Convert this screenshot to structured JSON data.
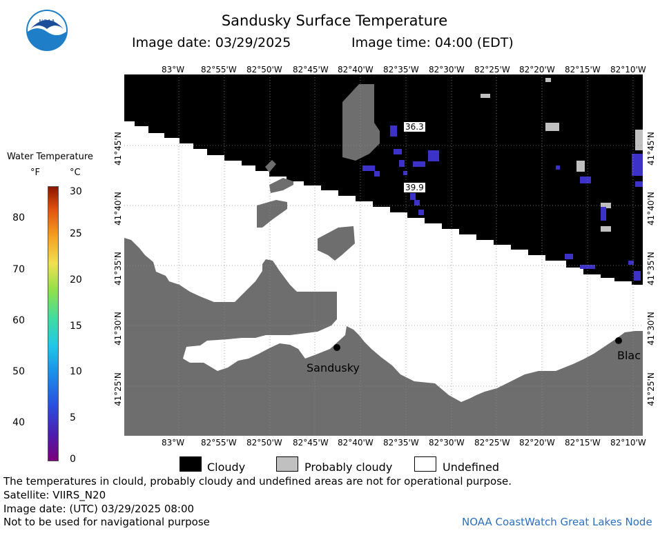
{
  "title": "Sandusky Surface Temperature",
  "image_date": "Image date: 03/29/2025",
  "image_time": "Image time: 04:00 (EDT)",
  "legend": {
    "title": "Water Temperature",
    "unit_f": "°F",
    "unit_c": "°C",
    "f_ticks": [
      "80",
      "70",
      "60",
      "50",
      "40"
    ],
    "c_ticks": [
      "30",
      "25",
      "20",
      "15",
      "10",
      "5",
      "0"
    ]
  },
  "map": {
    "lon_labels": [
      "83°W",
      "82°55'W",
      "82°50'W",
      "82°45'W",
      "82°40'W",
      "82°35'W",
      "82°30'W",
      "82°25'W",
      "82°20'W",
      "82°15'W",
      "82°10'W"
    ],
    "lat_labels": [
      "41°45'N",
      "41°40'N",
      "41°35'N",
      "41°30'N",
      "41°25'N"
    ],
    "temp_labels": [
      "36.3",
      "39.9"
    ],
    "cities": [
      "Sandusky",
      "Blac"
    ],
    "colors": {
      "cloudy": "#000000",
      "probably_cloudy": "#c0c0c0",
      "land": "#6e6e6e",
      "undefined": "#ffffff",
      "cold_water": "#3c32c8"
    }
  },
  "key": {
    "cloudy": "Cloudy",
    "probably_cloudy": "Probably cloudy",
    "undefined": "Undefined"
  },
  "footer": {
    "disclaimer": "The temperatures in clould, probably cloudy and undefined areas are not for operational purpose.",
    "satellite": "Satellite: VIIRS_N20",
    "utc_date": "Image date: (UTC) 03/29/2025  08:00",
    "nav_warning": "Not to be used for navigational purpose",
    "node": "NOAA CoastWatch Great Lakes Node"
  }
}
